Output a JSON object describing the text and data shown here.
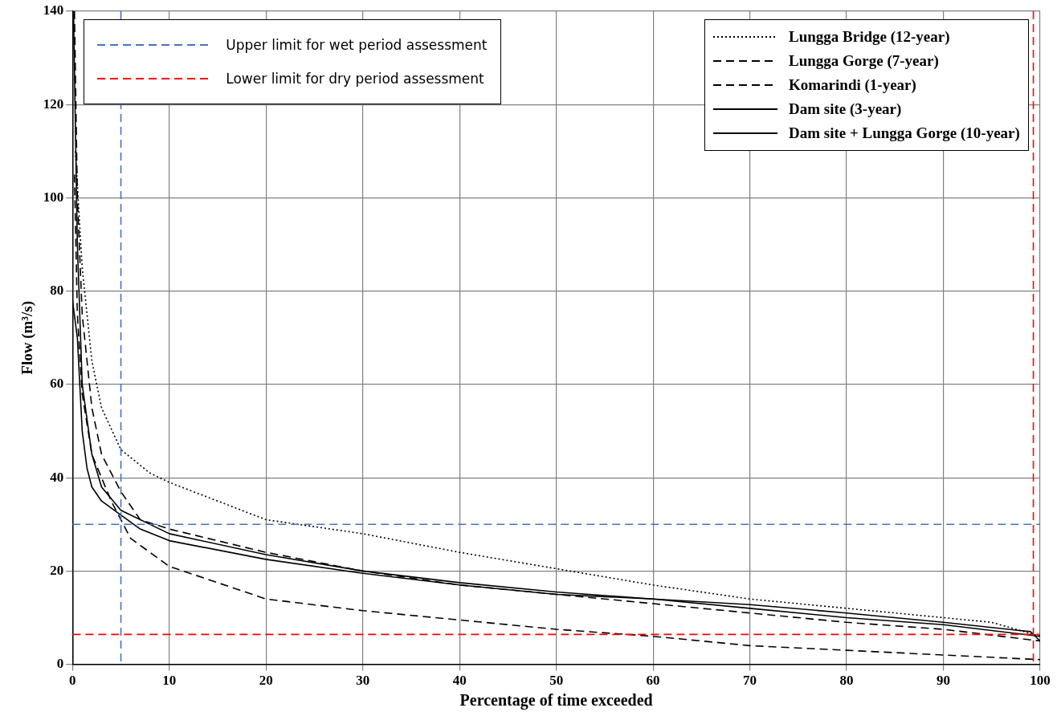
{
  "chart_data": {
    "type": "line",
    "xlabel": "Percentage of time exceeded",
    "ylabel": "Flow (m³/s)",
    "xlim": [
      0,
      100
    ],
    "xticks": [
      0,
      10,
      20,
      30,
      40,
      50,
      60,
      70,
      80,
      90,
      100
    ],
    "ylim": [
      0,
      140
    ],
    "yticks": [
      0,
      20,
      40,
      60,
      80,
      100,
      120,
      140
    ],
    "grid": true,
    "legend": "top right",
    "marker": "none",
    "series": [
      {
        "name": "Lungga Bridge (12-year)",
        "color": "#000000",
        "line_style": "dotted",
        "x": [
          0.3,
          1,
          2,
          3,
          5,
          8,
          10,
          15,
          20,
          30,
          40,
          50,
          60,
          70,
          80,
          90,
          95,
          100
        ],
        "values": [
          110,
          85,
          65,
          55,
          46,
          41,
          39,
          35,
          31,
          28,
          24,
          20.5,
          17,
          14,
          12,
          10,
          9,
          6
        ]
      },
      {
        "name": "Lungga Gorge (7-year)",
        "color": "#000000",
        "line_style": "dashed",
        "x": [
          0.2,
          0.5,
          1,
          2,
          3,
          5,
          7,
          10,
          20,
          30,
          40,
          50,
          60,
          70,
          80,
          90,
          100
        ],
        "values": [
          140,
          100,
          75,
          55,
          45,
          37,
          31,
          29,
          24,
          20,
          17,
          15,
          13,
          11,
          9,
          7.5,
          5
        ]
      },
      {
        "name": "Komarindi (1-year)",
        "color": "#000000",
        "line_style": "dashed",
        "x": [
          0.2,
          0.5,
          1,
          2,
          4,
          6,
          10,
          20,
          30,
          40,
          50,
          60,
          70,
          80,
          90,
          100
        ],
        "values": [
          105,
          75,
          58,
          45,
          35,
          27,
          21,
          14,
          11.5,
          9.5,
          7.5,
          6,
          4,
          3,
          2,
          1
        ]
      },
      {
        "name": "Dam site (3-year)",
        "color": "#000000",
        "line_style": "solid",
        "x": [
          0.1,
          0.5,
          1,
          2,
          3,
          5,
          10,
          20,
          30,
          40,
          50,
          60,
          70,
          80,
          90,
          100
        ],
        "values": [
          140,
          90,
          60,
          45,
          38,
          33,
          28,
          23.5,
          20,
          17.5,
          15.5,
          14,
          12,
          10,
          8.5,
          6
        ]
      },
      {
        "name": "Dam site + Lungga Gorge (10-year)",
        "color": "#000000",
        "line_style": "solid",
        "x": [
          0,
          0.5,
          1,
          1.5,
          2,
          3,
          5,
          7,
          10,
          20,
          30,
          40,
          50,
          60,
          70,
          80,
          90,
          99,
          100
        ],
        "values": [
          78,
          70,
          50,
          42,
          38,
          35,
          32,
          29,
          26.5,
          22.5,
          19.5,
          17,
          15,
          14,
          12.8,
          11,
          9,
          7,
          5
        ]
      }
    ],
    "ref_lines": [
      {
        "axis": "y",
        "value": 30,
        "label": "Upper limit for wet period assessment",
        "color": "#4472c4",
        "line_style": "dashed"
      },
      {
        "axis": "x",
        "value": 5,
        "color": "#4472c4",
        "line_style": "dashed"
      },
      {
        "axis": "y",
        "value": 6.4,
        "label": "Lower limit for dry period assessment",
        "color": "#ff0000",
        "line_style": "dashed"
      },
      {
        "axis": "x",
        "value": 99.3,
        "color": "#ff0000",
        "line_style": "dashed"
      }
    ]
  }
}
